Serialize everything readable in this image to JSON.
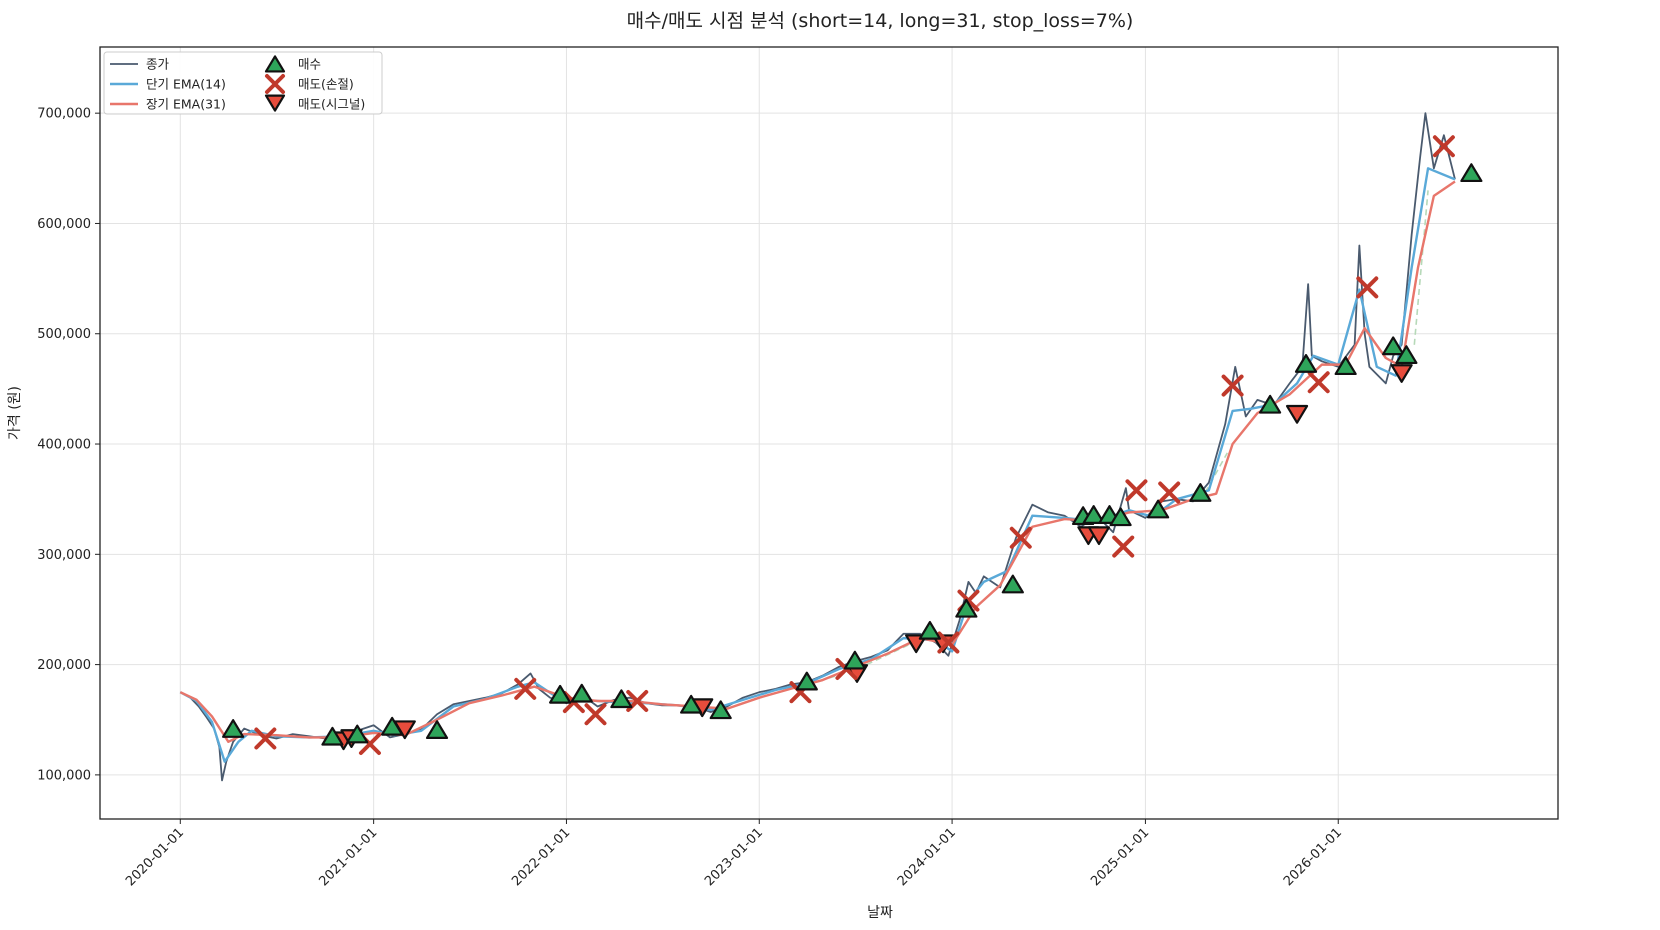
{
  "chart_data": {
    "type": "line",
    "title": "매수/매도 시점 분석 (short=14, long=31, stop_loss=7%)",
    "xlabel": "날짜",
    "ylabel": "가격 (원)",
    "xlim": [
      "2019-08-02",
      "2027-02-21"
    ],
    "ylim": [
      60000,
      760000
    ],
    "grid": true,
    "legend_position": "top-left",
    "x_ticks": [
      "2020-01-01",
      "2021-01-01",
      "2022-01-01",
      "2023-01-01",
      "2024-01-01",
      "2025-01-01",
      "2026-01-01"
    ],
    "y_ticks": [
      100000,
      200000,
      300000,
      400000,
      500000,
      600000,
      700000
    ],
    "y_tick_labels": [
      "100,000",
      "200,000",
      "300,000",
      "400,000",
      "500,000",
      "600,000",
      "700,000"
    ],
    "colors": {
      "close": "#4a5a6e",
      "ema_short": "#5aa9d8",
      "ema_long": "#e8766b",
      "buy": "#2ea55a",
      "stop": "#c0392b",
      "signal_sell": "#e74c3c",
      "trend": "#b6d9b8"
    },
    "legend": [
      {
        "key": "close",
        "label": "종가"
      },
      {
        "key": "ema_short",
        "label": "단기 EMA(14)"
      },
      {
        "key": "ema_long",
        "label": "장기 EMA(31)"
      },
      {
        "key": "buy",
        "label": "매수"
      },
      {
        "key": "stop",
        "label": "매도(손절)"
      },
      {
        "key": "signal_sell",
        "label": "매도(시그널)"
      }
    ],
    "series": [
      {
        "name": "종가",
        "points": [
          [
            "2020-01-01",
            175000
          ],
          [
            "2020-01-20",
            170000
          ],
          [
            "2020-02-05",
            162000
          ],
          [
            "2020-02-20",
            152000
          ],
          [
            "2020-03-05",
            142000
          ],
          [
            "2020-03-15",
            125000
          ],
          [
            "2020-03-20",
            95000
          ],
          [
            "2020-03-28",
            112000
          ],
          [
            "2020-04-10",
            130000
          ],
          [
            "2020-05-01",
            142000
          ],
          [
            "2020-06-01",
            136000
          ],
          [
            "2020-07-01",
            133000
          ],
          [
            "2020-08-01",
            137000
          ],
          [
            "2020-09-01",
            135000
          ],
          [
            "2020-10-01",
            133000
          ],
          [
            "2020-11-01",
            137000
          ],
          [
            "2020-12-01",
            140000
          ],
          [
            "2021-01-01",
            145000
          ],
          [
            "2021-02-01",
            134000
          ],
          [
            "2021-03-01",
            137000
          ],
          [
            "2021-04-01",
            141000
          ],
          [
            "2021-05-01",
            155000
          ],
          [
            "2021-06-01",
            164000
          ],
          [
            "2021-07-01",
            167000
          ],
          [
            "2021-08-01",
            170000
          ],
          [
            "2021-09-01",
            174000
          ],
          [
            "2021-10-01",
            182000
          ],
          [
            "2021-10-25",
            192000
          ],
          [
            "2021-11-10",
            178000
          ],
          [
            "2021-12-01",
            170000
          ],
          [
            "2022-01-01",
            165000
          ],
          [
            "2022-02-01",
            172000
          ],
          [
            "2022-03-01",
            162000
          ],
          [
            "2022-04-01",
            168000
          ],
          [
            "2022-05-01",
            170000
          ],
          [
            "2022-06-01",
            165000
          ],
          [
            "2022-07-01",
            163000
          ],
          [
            "2022-08-01",
            163000
          ],
          [
            "2022-09-01",
            162000
          ],
          [
            "2022-10-01",
            157000
          ],
          [
            "2022-11-01",
            162000
          ],
          [
            "2022-12-01",
            170000
          ],
          [
            "2023-01-01",
            175000
          ],
          [
            "2023-02-01",
            178000
          ],
          [
            "2023-03-01",
            182000
          ],
          [
            "2023-04-01",
            184000
          ],
          [
            "2023-05-01",
            190000
          ],
          [
            "2023-06-01",
            198000
          ],
          [
            "2023-07-01",
            203000
          ],
          [
            "2023-08-01",
            207000
          ],
          [
            "2023-09-01",
            213000
          ],
          [
            "2023-10-01",
            228000
          ],
          [
            "2023-11-01",
            228000
          ],
          [
            "2023-12-01",
            220000
          ],
          [
            "2023-12-25",
            208000
          ],
          [
            "2024-01-15",
            240000
          ],
          [
            "2024-02-01",
            275000
          ],
          [
            "2024-02-15",
            265000
          ],
          [
            "2024-03-01",
            280000
          ],
          [
            "2024-04-01",
            270000
          ],
          [
            "2024-05-01",
            315000
          ],
          [
            "2024-06-01",
            345000
          ],
          [
            "2024-07-01",
            338000
          ],
          [
            "2024-08-01",
            335000
          ],
          [
            "2024-09-01",
            325000
          ],
          [
            "2024-10-01",
            335000
          ],
          [
            "2024-11-01",
            320000
          ],
          [
            "2024-11-25",
            360000
          ],
          [
            "2024-12-01",
            340000
          ],
          [
            "2025-01-01",
            333000
          ],
          [
            "2025-02-01",
            348000
          ],
          [
            "2025-03-01",
            350000
          ],
          [
            "2025-04-01",
            348000
          ],
          [
            "2025-05-01",
            365000
          ],
          [
            "2025-06-01",
            418000
          ],
          [
            "2025-06-20",
            470000
          ],
          [
            "2025-07-10",
            425000
          ],
          [
            "2025-08-01",
            440000
          ],
          [
            "2025-09-01",
            435000
          ],
          [
            "2025-10-01",
            455000
          ],
          [
            "2025-10-25",
            470000
          ],
          [
            "2025-11-05",
            545000
          ],
          [
            "2025-11-12",
            480000
          ],
          [
            "2025-12-01",
            475000
          ],
          [
            "2026-01-01",
            470000
          ],
          [
            "2026-02-01",
            490000
          ],
          [
            "2026-02-10",
            580000
          ],
          [
            "2026-02-20",
            500000
          ],
          [
            "2026-03-01",
            470000
          ],
          [
            "2026-04-01",
            455000
          ],
          [
            "2026-04-15",
            480000
          ],
          [
            "2026-05-01",
            490000
          ],
          [
            "2026-05-20",
            590000
          ],
          [
            "2026-06-05",
            660000
          ],
          [
            "2026-06-15",
            700000
          ],
          [
            "2026-07-01",
            650000
          ],
          [
            "2026-07-20",
            680000
          ],
          [
            "2026-08-10",
            640000
          ]
        ]
      },
      {
        "name": "단기 EMA(14)",
        "points": [
          [
            "2020-01-01",
            175000
          ],
          [
            "2020-02-01",
            167000
          ],
          [
            "2020-03-01",
            148000
          ],
          [
            "2020-03-25",
            112000
          ],
          [
            "2020-04-20",
            130000
          ],
          [
            "2020-05-15",
            140000
          ],
          [
            "2020-07-01",
            135000
          ],
          [
            "2020-09-01",
            134000
          ],
          [
            "2020-11-01",
            135000
          ],
          [
            "2021-01-01",
            140000
          ],
          [
            "2021-02-10",
            136000
          ],
          [
            "2021-04-01",
            140000
          ],
          [
            "2021-06-01",
            162000
          ],
          [
            "2021-08-01",
            169000
          ],
          [
            "2021-10-01",
            180000
          ],
          [
            "2021-11-01",
            184000
          ],
          [
            "2021-12-15",
            170000
          ],
          [
            "2022-02-01",
            168000
          ],
          [
            "2022-04-01",
            166000
          ],
          [
            "2022-06-01",
            165000
          ],
          [
            "2022-08-01",
            163000
          ],
          [
            "2022-10-01",
            159000
          ],
          [
            "2022-12-01",
            168000
          ],
          [
            "2023-02-01",
            177000
          ],
          [
            "2023-04-01",
            183000
          ],
          [
            "2023-06-01",
            196000
          ],
          [
            "2023-08-01",
            205000
          ],
          [
            "2023-10-01",
            224000
          ],
          [
            "2023-12-01",
            222000
          ],
          [
            "2024-01-01",
            212000
          ],
          [
            "2024-02-01",
            258000
          ],
          [
            "2024-03-01",
            275000
          ],
          [
            "2024-04-15",
            285000
          ],
          [
            "2024-06-01",
            335000
          ],
          [
            "2024-08-01",
            333000
          ],
          [
            "2024-10-01",
            330000
          ],
          [
            "2024-12-01",
            340000
          ],
          [
            "2025-01-15",
            334000
          ],
          [
            "2025-03-01",
            350000
          ],
          [
            "2025-05-01",
            358000
          ],
          [
            "2025-06-15",
            430000
          ],
          [
            "2025-07-20",
            432000
          ],
          [
            "2025-09-01",
            436000
          ],
          [
            "2025-10-15",
            455000
          ],
          [
            "2025-11-15",
            480000
          ],
          [
            "2026-01-01",
            472000
          ],
          [
            "2026-02-10",
            540000
          ],
          [
            "2026-03-15",
            470000
          ],
          [
            "2026-04-20",
            462000
          ],
          [
            "2026-05-20",
            560000
          ],
          [
            "2026-06-20",
            650000
          ],
          [
            "2026-08-10",
            640000
          ]
        ]
      },
      {
        "name": "장기 EMA(31)",
        "points": [
          [
            "2020-01-01",
            175000
          ],
          [
            "2020-02-01",
            168000
          ],
          [
            "2020-03-01",
            153000
          ],
          [
            "2020-04-01",
            130000
          ],
          [
            "2020-05-01",
            137000
          ],
          [
            "2020-07-01",
            136000
          ],
          [
            "2020-09-01",
            134000
          ],
          [
            "2020-11-01",
            134000
          ],
          [
            "2021-01-01",
            138000
          ],
          [
            "2021-03-01",
            136000
          ],
          [
            "2021-05-01",
            150000
          ],
          [
            "2021-07-01",
            165000
          ],
          [
            "2021-09-01",
            172000
          ],
          [
            "2021-11-01",
            180000
          ],
          [
            "2022-01-01",
            170000
          ],
          [
            "2022-03-01",
            167000
          ],
          [
            "2022-05-01",
            167000
          ],
          [
            "2022-07-01",
            164000
          ],
          [
            "2022-09-01",
            162000
          ],
          [
            "2022-11-01",
            160000
          ],
          [
            "2023-01-01",
            170000
          ],
          [
            "2023-03-01",
            178000
          ],
          [
            "2023-05-01",
            186000
          ],
          [
            "2023-07-01",
            198000
          ],
          [
            "2023-09-01",
            210000
          ],
          [
            "2023-11-01",
            224000
          ],
          [
            "2024-01-01",
            218000
          ],
          [
            "2024-02-15",
            252000
          ],
          [
            "2024-04-01",
            272000
          ],
          [
            "2024-06-01",
            325000
          ],
          [
            "2024-08-01",
            332000
          ],
          [
            "2024-10-01",
            330000
          ],
          [
            "2024-12-01",
            338000
          ],
          [
            "2025-02-01",
            340000
          ],
          [
            "2025-04-01",
            350000
          ],
          [
            "2025-05-15",
            355000
          ],
          [
            "2025-06-15",
            400000
          ],
          [
            "2025-08-01",
            428000
          ],
          [
            "2025-10-01",
            445000
          ],
          [
            "2025-12-01",
            472000
          ],
          [
            "2026-01-15",
            472000
          ],
          [
            "2026-02-20",
            505000
          ],
          [
            "2026-04-01",
            478000
          ],
          [
            "2026-05-01",
            470000
          ],
          [
            "2026-06-01",
            560000
          ],
          [
            "2026-07-01",
            625000
          ],
          [
            "2026-08-10",
            638000
          ]
        ]
      }
    ],
    "trend_segments": [
      [
        [
          "2023-03-20",
          180000
        ],
        [
          "2023-07-01",
          195000
        ],
        [
          "2023-10-20",
          220000
        ]
      ],
      [
        [
          "2025-04-15",
          348000
        ],
        [
          "2025-06-05",
          392000
        ]
      ],
      [
        [
          "2026-05-25",
          490000
        ],
        [
          "2026-06-20",
          630000
        ]
      ]
    ],
    "buy_points": [
      [
        "2020-04-10",
        141000
      ],
      [
        "2020-10-15",
        134000
      ],
      [
        "2020-12-01",
        136000
      ],
      [
        "2021-02-05",
        143000
      ],
      [
        "2021-05-01",
        140000
      ],
      [
        "2021-12-20",
        172000
      ],
      [
        "2022-01-30",
        173000
      ],
      [
        "2022-04-15",
        168000
      ],
      [
        "2022-08-25",
        163000
      ],
      [
        "2022-10-20",
        158000
      ],
      [
        "2023-04-01",
        184000
      ],
      [
        "2023-07-01",
        203000
      ],
      [
        "2023-11-20",
        230000
      ],
      [
        "2024-01-28",
        250000
      ],
      [
        "2024-04-25",
        272000
      ],
      [
        "2024-09-05",
        334000
      ],
      [
        "2024-09-25",
        335000
      ],
      [
        "2024-10-25",
        335000
      ],
      [
        "2024-11-15",
        333000
      ],
      [
        "2025-01-25",
        340000
      ],
      [
        "2025-04-15",
        355000
      ],
      [
        "2025-08-25",
        435000
      ],
      [
        "2025-11-01",
        472000
      ],
      [
        "2026-01-15",
        470000
      ],
      [
        "2026-04-15",
        488000
      ],
      [
        "2026-05-10",
        480000
      ],
      [
        "2026-09-10",
        645000
      ]
    ],
    "stop_loss_points": [
      [
        "2020-06-10",
        133000
      ],
      [
        "2020-12-25",
        128000
      ],
      [
        "2021-10-15",
        178000
      ],
      [
        "2022-01-15",
        166000
      ],
      [
        "2022-02-25",
        155000
      ],
      [
        "2022-05-15",
        167000
      ],
      [
        "2023-03-20",
        175000
      ],
      [
        "2023-06-15",
        196000
      ],
      [
        "2023-12-25",
        220000
      ],
      [
        "2024-02-01",
        258000
      ],
      [
        "2024-05-10",
        315000
      ],
      [
        "2024-11-20",
        307000
      ],
      [
        "2024-12-15",
        358000
      ],
      [
        "2025-02-15",
        356000
      ],
      [
        "2025-06-15",
        453000
      ],
      [
        "2025-11-25",
        456000
      ],
      [
        "2026-02-25",
        542000
      ],
      [
        "2026-07-20",
        670000
      ]
    ],
    "signal_sell_points": [
      [
        "2020-11-05",
        132000
      ],
      [
        "2020-11-20",
        134000
      ],
      [
        "2021-03-01",
        142000
      ],
      [
        "2022-09-15",
        162000
      ],
      [
        "2023-07-05",
        193000
      ],
      [
        "2023-10-25",
        220000
      ],
      [
        "2023-12-15",
        220000
      ],
      [
        "2024-09-15",
        318000
      ],
      [
        "2024-10-05",
        318000
      ],
      [
        "2025-10-15",
        428000
      ],
      [
        "2026-05-01",
        465000
      ]
    ]
  }
}
